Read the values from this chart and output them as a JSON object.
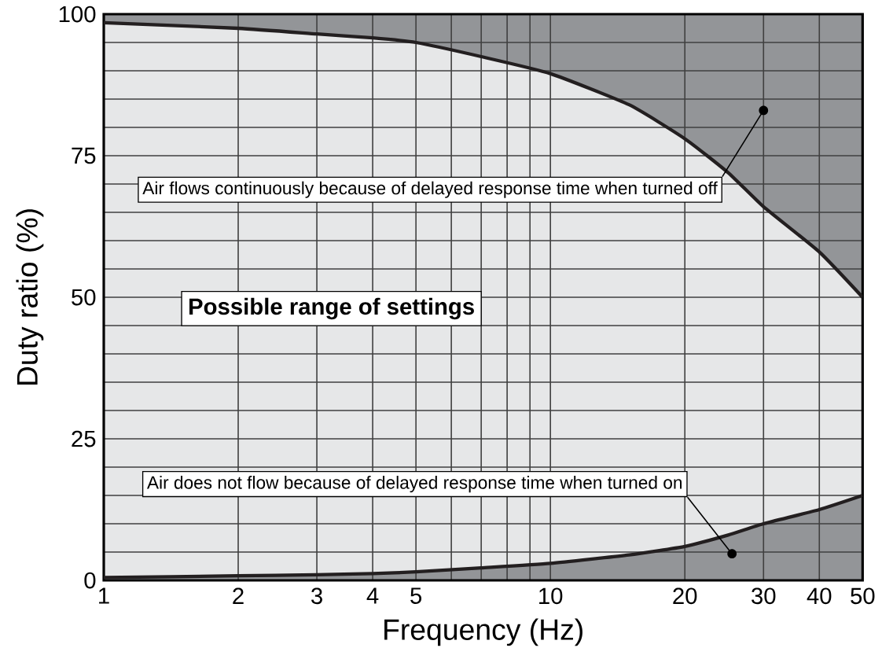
{
  "chart_data": {
    "type": "line",
    "xlabel": "Frequency (Hz)",
    "ylabel": "Duty ratio (%)",
    "log": "x",
    "x": [
      1,
      2,
      3,
      4,
      5,
      7,
      10,
      15,
      20,
      25,
      30,
      40,
      50
    ],
    "series": [
      {
        "color": "#231f20",
        "values": [
          98.5,
          97.5,
          96.5,
          95.8,
          95,
          92.5,
          89.5,
          84,
          78,
          72,
          66,
          58,
          50
        ]
      },
      {
        "color": "#231f20",
        "values": [
          0.5,
          0.8,
          1,
          1.2,
          1.5,
          2.2,
          3,
          4.5,
          6,
          8,
          10,
          12.5,
          15
        ]
      }
    ],
    "xlim": [
      1,
      50
    ],
    "ylim": [
      0,
      100
    ],
    "xticks": [
      1,
      2,
      3,
      4,
      5,
      {
        "value": 6,
        "label": null
      },
      {
        "value": 7,
        "label": null
      },
      {
        "value": 8,
        "label": null
      },
      {
        "value": 9,
        "label": null
      },
      10,
      20,
      30,
      40,
      50
    ],
    "yticks": [
      0,
      {
        "value": 5,
        "label": null
      },
      {
        "value": 10,
        "label": null
      },
      {
        "value": 15,
        "label": null
      },
      {
        "value": 20,
        "label": null
      },
      25,
      {
        "value": 30,
        "label": null
      },
      {
        "value": 35,
        "label": null
      },
      {
        "value": 40,
        "label": null
      },
      {
        "value": 45,
        "label": null
      },
      50,
      {
        "value": 55,
        "label": null
      },
      {
        "value": 60,
        "label": null
      },
      {
        "value": 65,
        "label": null
      },
      {
        "value": 70,
        "label": null
      },
      75,
      {
        "value": 80,
        "label": null
      },
      {
        "value": 85,
        "label": null
      },
      {
        "value": 90,
        "label": null
      },
      {
        "value": 95,
        "label": null
      },
      100
    ],
    "grid": true,
    "marker": "none",
    "line_style": "solid",
    "annotations": [
      {
        "text": "Air flows continuously because of delayed response time when turned off",
        "x": 30,
        "y": 83
      },
      "Possible range of settings",
      {
        "text": "Air does not flow because of delayed response time when turned on",
        "x": 25.5,
        "y": 4.7
      }
    ]
  }
}
